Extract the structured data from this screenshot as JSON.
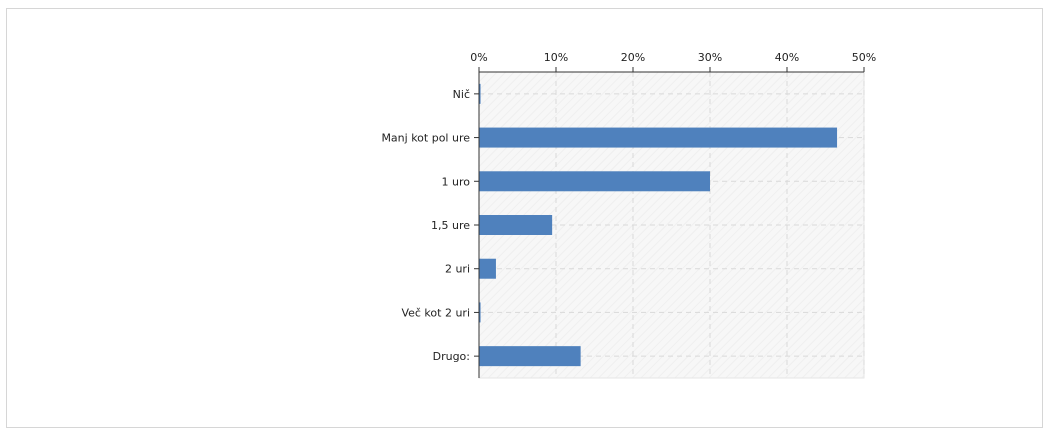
{
  "chart_data": {
    "type": "bar",
    "orientation": "horizontal",
    "title": "",
    "xlabel": "",
    "ylabel": "",
    "categories": [
      "Nič",
      "Manj kot pol ure",
      "1 uro",
      "1,5 ure",
      "2 uri",
      "Več kot 2 uri",
      "Drugo:"
    ],
    "values": [
      0.2,
      46.5,
      30,
      9.5,
      2.2,
      0.2,
      13.2
    ],
    "xlim": [
      0,
      50
    ],
    "x_ticks": [
      "0%",
      "10%",
      "20%",
      "30%",
      "40%",
      "50%"
    ],
    "axis_position": "top",
    "grid": true,
    "legend": false,
    "colors": {
      "bar": "#4f81bd",
      "grid": "#d9d9d9",
      "plot_bg": "#f7f7f7"
    }
  }
}
